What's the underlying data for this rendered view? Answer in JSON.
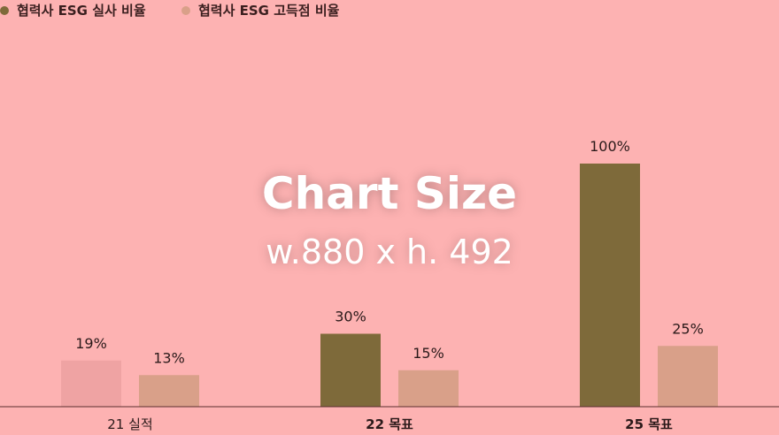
{
  "chart_data": {
    "type": "bar",
    "categories": [
      "21 실적",
      "22 목표",
      "25 목표"
    ],
    "series": [
      {
        "name": "협력사 ESG 실사 비율",
        "values": [
          19,
          30,
          100
        ],
        "value_labels": [
          "19%",
          "30%",
          "100%"
        ],
        "color": "#7e6a3a"
      },
      {
        "name": "협력사 ESG 고득점 비율",
        "values": [
          13,
          15,
          25
        ],
        "value_labels": [
          "13%",
          "15%",
          "25%"
        ],
        "color": "#d9a089"
      }
    ],
    "highlight_color_first": "#efa3a3",
    "ylim": [
      0,
      100
    ],
    "legend": "top-left",
    "grid": false
  },
  "overlay": {
    "title": "Chart Size",
    "subtitle": "w.880 x h. 492"
  },
  "background": "#fdb2b2"
}
